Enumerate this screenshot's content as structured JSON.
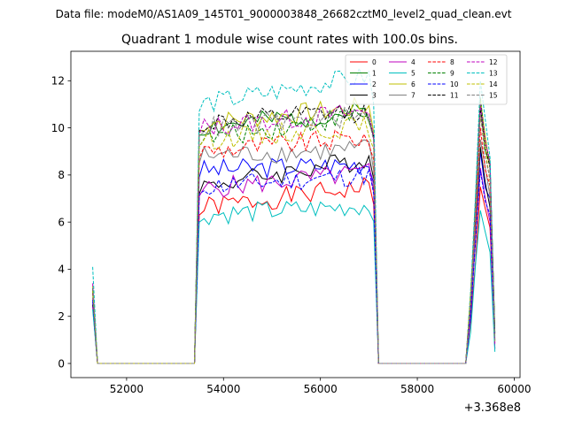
{
  "figure": {
    "suptitle": "Data file: modeM0/AS1A09_145T01_9000003848_26682cztM0_level2_quad_clean.evt",
    "offset_label": "+3.368e8"
  },
  "chart_data": {
    "type": "line",
    "title": "Quadrant 1 module wise count rates with 100.0s bins.",
    "xlabel": "",
    "ylabel": "",
    "x_offset": 336800000,
    "xlim": [
      50850,
      60120
    ],
    "ylim": [
      -0.6,
      13.25
    ],
    "xticks": [
      52000,
      54000,
      56000,
      58000,
      60000
    ],
    "xtick_labels": [
      "52000",
      "54000",
      "56000",
      "58000",
      "60000"
    ],
    "yticks": [
      0,
      2,
      4,
      6,
      8,
      10,
      12
    ],
    "ytick_labels": [
      "0",
      "2",
      "4",
      "6",
      "8",
      "10",
      "12"
    ],
    "grid": false,
    "legend_position": "top-right",
    "legend_columns": 4,
    "series": [
      {
        "name": "0",
        "color": "#ff0000",
        "dash": "solid",
        "base": 6.6,
        "trend": 0.9,
        "spike": 7.5,
        "start": 2.5,
        "seed": 1
      },
      {
        "name": "1",
        "color": "#008000",
        "dash": "solid",
        "base": 10.0,
        "trend": 0.7,
        "spike": 11.0,
        "start": 3.0,
        "seed": 2
      },
      {
        "name": "2",
        "color": "#0000ff",
        "dash": "solid",
        "base": 8.2,
        "trend": 0.3,
        "spike": 9.0,
        "start": 2.6,
        "seed": 3
      },
      {
        "name": "3",
        "color": "#000000",
        "dash": "solid",
        "base": 7.5,
        "trend": 1.2,
        "spike": 9.2,
        "start": 2.5,
        "seed": 4
      },
      {
        "name": "4",
        "color": "#bf00bf",
        "dash": "solid",
        "base": 7.4,
        "trend": 0.7,
        "spike": 8.3,
        "start": 2.4,
        "seed": 5
      },
      {
        "name": "5",
        "color": "#00bfbf",
        "dash": "solid",
        "base": 6.3,
        "trend": 0.4,
        "spike": 6.5,
        "start": 2.3,
        "seed": 6
      },
      {
        "name": "6",
        "color": "#bfbf00",
        "dash": "solid",
        "base": 10.2,
        "trend": 0.7,
        "spike": 11.2,
        "start": 3.3,
        "seed": 7
      },
      {
        "name": "7",
        "color": "#808080",
        "dash": "solid",
        "base": 8.8,
        "trend": 0.3,
        "spike": 9.5,
        "start": 2.8,
        "seed": 8
      },
      {
        "name": "8",
        "color": "#ff0000",
        "dash": "dashed",
        "base": 9.0,
        "trend": 0.6,
        "spike": 10.0,
        "start": 3.0,
        "seed": 9
      },
      {
        "name": "9",
        "color": "#008000",
        "dash": "dashed",
        "base": 9.5,
        "trend": 1.1,
        "spike": 11.3,
        "start": 3.1,
        "seed": 10
      },
      {
        "name": "10",
        "color": "#0000ff",
        "dash": "dashed",
        "base": 7.5,
        "trend": 0.5,
        "spike": 8.2,
        "start": 2.7,
        "seed": 11
      },
      {
        "name": "11",
        "color": "#000000",
        "dash": "dashed",
        "base": 10.2,
        "trend": 0.5,
        "spike": 10.8,
        "start": 3.2,
        "seed": 12
      },
      {
        "name": "12",
        "color": "#bf00bf",
        "dash": "dashed",
        "base": 10.0,
        "trend": 0.7,
        "spike": 11.0,
        "start": 3.4,
        "seed": 13
      },
      {
        "name": "13",
        "color": "#00bfbf",
        "dash": "dashed",
        "base": 11.0,
        "trend": 1.2,
        "spike": 12.0,
        "start": 4.1,
        "seed": 14
      },
      {
        "name": "14",
        "color": "#bfbf00",
        "dash": "dashed",
        "base": 9.5,
        "trend": 0.6,
        "spike": 10.5,
        "start": 3.1,
        "seed": 15
      },
      {
        "name": "15",
        "color": "#808080",
        "dash": "dashed",
        "base": 10.0,
        "trend": 0.5,
        "spike": 10.6,
        "start": 3.2,
        "seed": 16
      }
    ],
    "time_segments": {
      "first_bin": 51300,
      "bin_width": 100,
      "zero_until": 53400,
      "active_start": 53500,
      "active_end": 57000,
      "gap_start": 57200,
      "gap_end": 59000,
      "spike_bins": [
        59100,
        59200,
        59300,
        59400,
        59500,
        59600
      ]
    }
  }
}
